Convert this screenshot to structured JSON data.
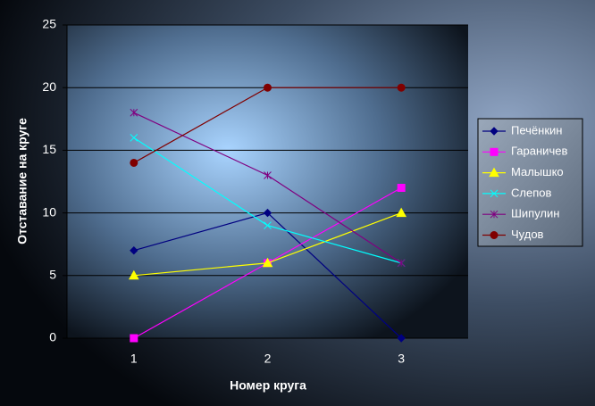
{
  "chart_data": {
    "type": "line",
    "x_label": "Номер круга",
    "y_label": "Отставание на круге",
    "categories": [
      "1",
      "2",
      "3"
    ],
    "ylim": [
      0,
      25
    ],
    "yticks": [
      0,
      5,
      10,
      15,
      20,
      25
    ],
    "grid": true,
    "legend": "right",
    "series": [
      {
        "name": "Печёнкин",
        "color": "#000080",
        "marker": "diamond",
        "values": [
          7,
          10,
          0
        ]
      },
      {
        "name": "Гараничев",
        "color": "#ff00ff",
        "marker": "square",
        "values": [
          0,
          6,
          12
        ]
      },
      {
        "name": "Малышко",
        "color": "#ffff00",
        "marker": "triangle",
        "values": [
          5,
          6,
          10
        ]
      },
      {
        "name": "Слепов",
        "color": "#00ffff",
        "marker": "x",
        "values": [
          16,
          9,
          6
        ]
      },
      {
        "name": "Шипулин",
        "color": "#800080",
        "marker": "star",
        "values": [
          18,
          13,
          6
        ]
      },
      {
        "name": "Чудов",
        "color": "#800000",
        "marker": "circle",
        "values": [
          14,
          20,
          20
        ]
      }
    ]
  }
}
